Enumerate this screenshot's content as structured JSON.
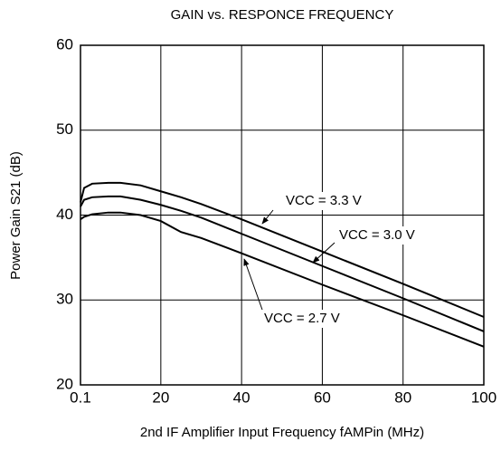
{
  "chart_data": {
    "type": "line",
    "title": "GAIN vs. RESPONCE FREQUENCY",
    "x_label": "2nd IF Amplifier Input Frequency  fAMPin  (MHz)",
    "y_label": "Power Gain  S21  (dB)",
    "x": [
      0.1,
      1,
      3,
      7,
      10,
      15,
      20,
      25,
      30,
      40,
      60,
      80,
      100
    ],
    "series": [
      {
        "name": "VCC = 3.3 V",
        "color": "#000000",
        "values": [
          41.5,
          43.2,
          43.7,
          43.8,
          43.8,
          43.5,
          42.8,
          42.1,
          41.3,
          39.5,
          35.7,
          31.9,
          28
        ]
      },
      {
        "name": "VCC = 3.0 V",
        "color": "#000000",
        "values": [
          41,
          41.8,
          42.1,
          42.2,
          42.2,
          41.8,
          41.2,
          40.5,
          39.7,
          37.8,
          34,
          30.2,
          26.3
        ]
      },
      {
        "name": "VCC = 2.7 V",
        "color": "#000000",
        "values": [
          39.5,
          39.8,
          40.1,
          40.3,
          40.3,
          40,
          39.3,
          38,
          37.3,
          35.5,
          31.8,
          28.2,
          24.5
        ]
      }
    ],
    "xlim": [
      0.1,
      100
    ],
    "xticks": [
      0.1,
      20,
      40,
      60,
      80,
      100
    ],
    "ylim": [
      20,
      60
    ],
    "yticks": [
      20,
      30,
      40,
      50,
      60
    ],
    "grid": true
  }
}
